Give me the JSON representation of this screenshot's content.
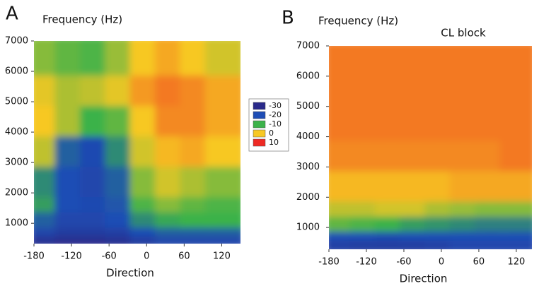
{
  "chart_data": [
    {
      "type": "heatmap",
      "panel_label": "A",
      "y_label": "Frequency (Hz)",
      "x_label": "Direction",
      "xlim": [
        -180,
        150
      ],
      "ylim": [
        330,
        7000
      ],
      "xticks": [
        -180,
        -120,
        -60,
        0,
        60,
        120
      ],
      "yticks": [
        1000,
        2000,
        3000,
        4000,
        5000,
        6000,
        7000
      ],
      "x_bins": [
        -180,
        -140,
        -100,
        -60,
        -20,
        20,
        60,
        100,
        150
      ],
      "y_bins": [
        330,
        700,
        1000,
        1500,
        2000,
        3000,
        4000,
        5000,
        6000,
        7000
      ],
      "values": [
        [
          -28,
          -29,
          -29,
          -28,
          -25,
          -22,
          -22,
          -22
        ],
        [
          -22,
          -25,
          -25,
          -24,
          -20,
          -18,
          -18,
          -18
        ],
        [
          -18,
          -22,
          -22,
          -20,
          -14,
          -11,
          -10,
          -10
        ],
        [
          -12,
          -20,
          -21,
          -19,
          -9,
          -6,
          -8,
          -9
        ],
        [
          -14,
          -20,
          -22,
          -18,
          -6,
          -2,
          -4,
          -6
        ],
        [
          -3,
          -18,
          -21,
          -14,
          -2,
          1,
          2,
          0
        ],
        [
          0,
          -4,
          -10,
          -8,
          0,
          4,
          4,
          2
        ],
        [
          -1,
          -4,
          -3,
          -1,
          3,
          5,
          4,
          2
        ],
        [
          -6,
          -8,
          -9,
          -5,
          0,
          2,
          0,
          -2
        ]
      ],
      "colorbar": [
        {
          "value": -30,
          "color": "#2a2a8a"
        },
        {
          "value": -20,
          "color": "#1e4db5"
        },
        {
          "value": -10,
          "color": "#3bb24a"
        },
        {
          "value": 0,
          "color": "#f7c824"
        },
        {
          "value": 10,
          "color": "#ee2a24"
        }
      ]
    },
    {
      "type": "heatmap",
      "panel_label": "B",
      "title": "CL block",
      "y_label": "Frequency (Hz)",
      "x_label": "Direction",
      "xlim": [
        -180,
        145
      ],
      "ylim": [
        280,
        7000
      ],
      "xticks": [
        -180,
        -120,
        -60,
        0,
        60,
        120
      ],
      "yticks": [
        1000,
        2000,
        3000,
        4000,
        5000,
        6000,
        7000
      ],
      "x_bins": [
        -180,
        -140,
        -100,
        -60,
        -20,
        20,
        60,
        100,
        145
      ],
      "y_bins": [
        280,
        700,
        1000,
        1500,
        2000,
        3000,
        4000,
        5000,
        6000,
        7000
      ],
      "values": [
        [
          -24,
          -25,
          -25,
          -25,
          -24,
          -22,
          -22,
          -22
        ],
        [
          -20,
          -20,
          -21,
          -20,
          -20,
          -20,
          -20,
          -20
        ],
        [
          -8,
          -9,
          -10,
          -12,
          -13,
          -14,
          -15,
          -15
        ],
        [
          -3,
          -3,
          -2,
          -2,
          -4,
          -5,
          -6,
          -6
        ],
        [
          1,
          1,
          1,
          1,
          1,
          2,
          2,
          2
        ],
        [
          4,
          4,
          4,
          4,
          4,
          4,
          4,
          5
        ],
        [
          5,
          5,
          5,
          5,
          5,
          5,
          5,
          5
        ],
        [
          5,
          5,
          5,
          5,
          5,
          5,
          5,
          5
        ],
        [
          5,
          5,
          5,
          5,
          5,
          5,
          5,
          5
        ]
      ]
    }
  ]
}
